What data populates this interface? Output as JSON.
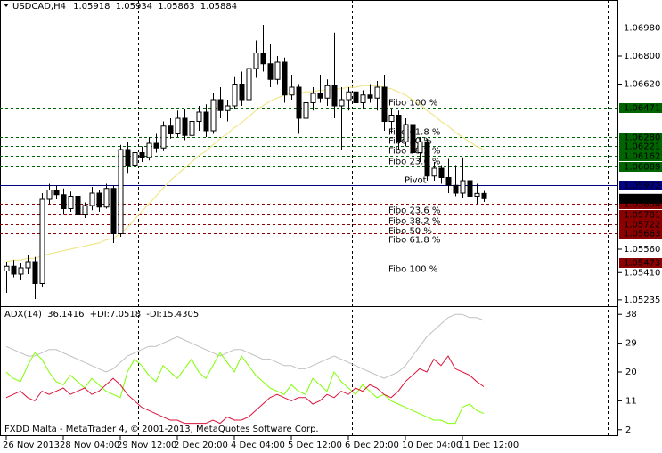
{
  "chart_data": {
    "type": "candlestick",
    "symbol": "USDCAD,H4",
    "footer": "FXDD Malta - MetaTrader 4, © 2001-2013, MetaQuotes Software Corp.",
    "categories": [
      "26 Nov 2013",
      null,
      null,
      null,
      null,
      null,
      null,
      null,
      "28 Nov 04:00",
      null,
      null,
      null,
      null,
      null,
      null,
      null,
      "29 Nov 12:00",
      null,
      null,
      null,
      null,
      null,
      null,
      null,
      "2 Dec 20:00",
      null,
      null,
      null,
      null,
      null,
      null,
      null,
      "4 Dec 04:00",
      null,
      null,
      null,
      null,
      null,
      null,
      null,
      "5 Dec 12:00",
      null,
      null,
      null,
      null,
      null,
      null,
      null,
      "6 Dec 20:00",
      null,
      null,
      null,
      null,
      null,
      null,
      null,
      "10 Dec 04:00",
      null,
      null,
      null,
      null,
      null,
      null,
      null,
      "11 Dec 12:00",
      null,
      null,
      null
    ],
    "open": [
      1.0542,
      1.0545,
      1.054,
      1.0544,
      1.0548,
      1.0534,
      1.0588,
      1.0594,
      1.0591,
      1.0582,
      1.059,
      1.0578,
      1.0584,
      1.0592,
      1.0583,
      1.0595,
      1.0566,
      1.062,
      1.061,
      1.0618,
      1.0615,
      1.0624,
      1.0621,
      1.0635,
      1.063,
      1.064,
      1.0629,
      1.0638,
      1.0644,
      1.0632,
      1.0652,
      1.0645,
      1.0648,
      1.0662,
      1.0652,
      1.0672,
      1.0682,
      1.0675,
      1.0665,
      1.0676,
      1.0655,
      1.066,
      1.064,
      1.065,
      1.0656,
      1.0653,
      1.0661,
      1.0648,
      1.0652,
      1.0657,
      1.065,
      1.0655,
      1.0653,
      1.066,
      1.0638,
      1.0642,
      1.0625,
      1.0636,
      1.0618,
      1.0625,
      1.0603,
      1.0608,
      1.0602,
      1.0597,
      1.0592,
      1.06,
      1.059,
      1.05918
    ],
    "high": [
      1.0548,
      1.0549,
      1.0547,
      1.0552,
      1.0551,
      1.0592,
      1.0598,
      1.0597,
      1.0595,
      1.0593,
      1.0592,
      1.0586,
      1.0596,
      1.0594,
      1.0598,
      1.0597,
      1.0623,
      1.0625,
      1.0624,
      1.0622,
      1.0628,
      1.063,
      1.0638,
      1.064,
      1.0645,
      1.0646,
      1.0642,
      1.0648,
      1.0649,
      1.0656,
      1.066,
      1.0652,
      1.0667,
      1.067,
      1.0675,
      1.069,
      1.07,
      1.0688,
      1.068,
      1.0679,
      1.0668,
      1.0662,
      1.0655,
      1.066,
      1.0668,
      1.0665,
      1.0695,
      1.066,
      1.066,
      1.0662,
      1.0658,
      1.0662,
      1.0664,
      1.0668,
      1.0646,
      1.0645,
      1.064,
      1.0639,
      1.0628,
      1.0627,
      1.0612,
      1.061,
      1.0614,
      1.061,
      1.0615,
      1.0603,
      1.0598,
      1.05934
    ],
    "low": [
      1.0528,
      1.0538,
      1.0536,
      1.054,
      1.0524,
      1.0532,
      1.0585,
      1.0588,
      1.0578,
      1.058,
      1.0574,
      1.0576,
      1.0581,
      1.058,
      1.0582,
      1.056,
      1.0564,
      1.0605,
      1.0608,
      1.0612,
      1.0613,
      1.0618,
      1.0619,
      1.0627,
      1.0628,
      1.0626,
      1.0627,
      1.0632,
      1.0628,
      1.063,
      1.064,
      1.0638,
      1.0646,
      1.0648,
      1.065,
      1.0666,
      1.067,
      1.066,
      1.0662,
      1.065,
      1.0652,
      1.063,
      1.0636,
      1.0645,
      1.065,
      1.0648,
      1.064,
      1.062,
      1.0645,
      1.0648,
      1.0646,
      1.065,
      1.0645,
      1.0632,
      1.063,
      1.062,
      1.0622,
      1.0615,
      1.0612,
      1.06,
      1.06,
      1.0598,
      1.0592,
      1.059,
      1.0589,
      1.0588,
      1.0585,
      1.05863
    ],
    "close": [
      1.0545,
      1.054,
      1.0544,
      1.0548,
      1.0534,
      1.0588,
      1.0594,
      1.0591,
      1.0582,
      1.059,
      1.0578,
      1.0584,
      1.0592,
      1.0583,
      1.0595,
      1.0566,
      1.062,
      1.061,
      1.0618,
      1.0615,
      1.0624,
      1.0621,
      1.0635,
      1.063,
      1.064,
      1.0629,
      1.0638,
      1.0644,
      1.0632,
      1.0652,
      1.0645,
      1.0648,
      1.0662,
      1.0652,
      1.0672,
      1.0682,
      1.0675,
      1.0665,
      1.0676,
      1.0655,
      1.066,
      1.064,
      1.065,
      1.0656,
      1.0653,
      1.0661,
      1.0648,
      1.0652,
      1.0657,
      1.065,
      1.0655,
      1.0653,
      1.066,
      1.0638,
      1.0642,
      1.0625,
      1.0636,
      1.0618,
      1.0625,
      1.0603,
      1.0608,
      1.0602,
      1.0597,
      1.0592,
      1.06,
      1.059,
      1.05918,
      1.05884
    ],
    "ma": {
      "color": "#f0e68c",
      "values": [
        1.0548,
        1.0549,
        1.0549,
        1.055,
        1.055,
        1.0552,
        1.0553,
        1.0554,
        1.0555,
        1.0556,
        1.0557,
        1.0558,
        1.0559,
        1.056,
        1.0562,
        1.0563,
        1.0566,
        1.057,
        1.0575,
        1.058,
        1.0585,
        1.059,
        1.0595,
        1.06,
        1.0604,
        1.0608,
        1.0612,
        1.0616,
        1.0619,
        1.0623,
        1.0627,
        1.063,
        1.0634,
        1.0637,
        1.0641,
        1.0645,
        1.0648,
        1.0651,
        1.0653,
        1.0655,
        1.0656,
        1.0656,
        1.0657,
        1.0657,
        1.0658,
        1.0658,
        1.0659,
        1.0659,
        1.066,
        1.066,
        1.0661,
        1.0661,
        1.0661,
        1.066,
        1.0659,
        1.0657,
        1.0655,
        1.0652,
        1.0649,
        1.0645,
        1.0642,
        1.0638,
        1.0635,
        1.0631,
        1.0628,
        1.0625,
        1.0622,
        1.062
      ]
    },
    "ylim": [
      1.052,
      1.0716
    ],
    "yticks": [
      {
        "value": 1.0698,
        "label": "1.06980"
      },
      {
        "value": 1.068,
        "label": "1.06800"
      },
      {
        "value": 1.0662,
        "label": "1.06620"
      },
      {
        "value": 1.0556,
        "label": "1.05560"
      },
      {
        "value": 1.0541,
        "label": "1.05410"
      },
      1.05235
    ],
    "levels": {
      "names": [
        "Fibo 100 %",
        "Fibo 61.8 %",
        "Fibo 50 %",
        "Fibo 38.2 %",
        "Fibo 23.6 %",
        "Pivot",
        "Fibo 23.6 %",
        "Fibo 38.2 %",
        "Fibo 50 %",
        "Fibo 61.8 %",
        "Fibo 100 %"
      ],
      "values": [
        1.06471,
        1.0628,
        1.06221,
        1.06162,
        1.06089,
        1.05972,
        1.05854,
        1.05781,
        1.05722,
        1.05663,
        1.05473
      ],
      "value_labels": [
        "1.06471",
        "1.06280",
        "1.06221",
        "1.06162",
        "1.06089",
        "1.05972",
        "1.05854",
        "1.05781",
        "1.05722",
        "1.05663",
        "1.05473"
      ],
      "colors": [
        "#006400",
        "#006400",
        "#006400",
        "#006400",
        "#006400",
        "#000080",
        "#8b0000",
        "#8b0000",
        "#8b0000",
        "#8b0000",
        "#8b0000"
      ]
    },
    "indicator": {
      "ylim": [
        0,
        40
      ],
      "yticks": [
        38,
        29,
        20,
        11,
        2
      ],
      "series": [
        {
          "name": "ADX(14)",
          "color": "#c0c0c0",
          "values": [
            28,
            27,
            26,
            25,
            25,
            26,
            27,
            27,
            26,
            25,
            24,
            23,
            22,
            21,
            20,
            21,
            23,
            25,
            26,
            27,
            28,
            28,
            29,
            30,
            31,
            30,
            29,
            28,
            27,
            26,
            25,
            26,
            27,
            27,
            26,
            25,
            24,
            24,
            23,
            22,
            22,
            21,
            21,
            22,
            23,
            24,
            25,
            24,
            23,
            22,
            21,
            20,
            19,
            18,
            19,
            20,
            22,
            25,
            28,
            31,
            33,
            35,
            37,
            38,
            38,
            37,
            37,
            36.1416
          ]
        },
        {
          "name": "+DI:",
          "color": "#7fff00",
          "values": [
            20,
            18,
            17,
            22,
            26,
            24,
            20,
            17,
            16,
            19,
            17,
            15,
            18,
            16,
            14,
            13,
            12,
            20,
            24,
            22,
            19,
            17,
            22,
            20,
            18,
            21,
            24,
            20,
            18,
            22,
            26,
            23,
            20,
            25,
            22,
            19,
            17,
            15,
            14,
            13,
            16,
            14,
            13,
            18,
            16,
            14,
            20,
            17,
            15,
            13,
            16,
            14,
            12,
            13,
            11,
            10,
            9,
            8,
            7,
            6,
            5,
            5,
            4,
            4,
            9,
            10,
            8,
            7.0518
          ]
        },
        {
          "name": "-DI:",
          "color": "#dc143c",
          "values": [
            12,
            13,
            14,
            12,
            11,
            14,
            13,
            14,
            15,
            13,
            14,
            15,
            13,
            14,
            16,
            18,
            16,
            13,
            11,
            9,
            8,
            7,
            6,
            5,
            5,
            4,
            4,
            4,
            4,
            5,
            4,
            6,
            5,
            5,
            6,
            8,
            10,
            12,
            13,
            12,
            11,
            12,
            12,
            10,
            11,
            13,
            12,
            14,
            13,
            15,
            14,
            16,
            15,
            13,
            12,
            14,
            17,
            19,
            21,
            20,
            24,
            22,
            25,
            21,
            20,
            19,
            17,
            15.4305
          ]
        }
      ]
    }
  }
}
